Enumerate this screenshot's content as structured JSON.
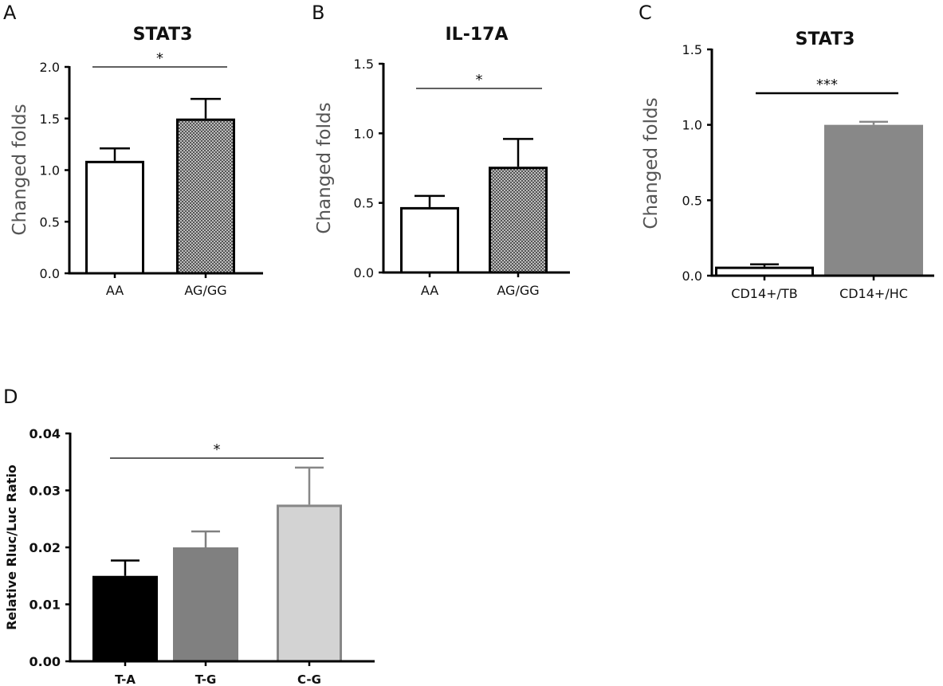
{
  "figure_title": "",
  "panel_letters": [
    "A",
    "B",
    "C",
    "D"
  ],
  "colors": {
    "white": "#ffffff",
    "checker_dark": "#555555",
    "checker_light": "#bdbdbd",
    "gray": "#888888",
    "black": "#000000",
    "mid_gray": "#808080",
    "light_gray": "#d3d3d3",
    "dark_gray_border": "#878787",
    "axis": "#000000"
  },
  "chart_data": [
    {
      "panel": "A",
      "type": "bar",
      "title": "STAT3",
      "xlabel": "",
      "ylabel": "Changed folds",
      "ylim": [
        0,
        2.0
      ],
      "yticks": [
        "0.0",
        "0.5",
        "1.0",
        "1.5",
        "2.0"
      ],
      "categories": [
        "AA",
        "AG/GG"
      ],
      "values": [
        1.09,
        1.5
      ],
      "errors": [
        0.12,
        0.19
      ],
      "fills": [
        "white",
        "checker"
      ],
      "significance": {
        "label": "*",
        "between": [
          0,
          1
        ]
      }
    },
    {
      "panel": "B",
      "type": "bar",
      "title": "IL-17A",
      "xlabel": "",
      "ylabel": "Changed folds",
      "ylim": [
        0,
        1.5
      ],
      "yticks": [
        "0.0",
        "0.5",
        "1.0",
        "1.5"
      ],
      "categories": [
        "AA",
        "AG/GG"
      ],
      "values": [
        0.47,
        0.76
      ],
      "errors": [
        0.08,
        0.2
      ],
      "fills": [
        "white",
        "checker"
      ],
      "significance": {
        "label": "*",
        "between": [
          0,
          1
        ]
      }
    },
    {
      "panel": "C",
      "type": "bar",
      "title": "STAT3",
      "xlabel": "",
      "ylabel": "Changed folds",
      "ylim": [
        0,
        1.5
      ],
      "yticks": [
        "0.0",
        "0.5",
        "1.0",
        "1.5"
      ],
      "categories": [
        "CD14+/TB",
        "CD14+/HC"
      ],
      "values": [
        0.06,
        1.0
      ],
      "errors": [
        0.015,
        0.02
      ],
      "fills": [
        "white",
        "gray"
      ],
      "significance": {
        "label": "***",
        "between": [
          0,
          1
        ]
      }
    },
    {
      "panel": "D",
      "type": "bar",
      "title": "",
      "xlabel": "",
      "ylabel": "Relative Rluc/Luc Ratio",
      "ylim": [
        0,
        0.04
      ],
      "yticks": [
        "0.00",
        "0.01",
        "0.02",
        "0.03",
        "0.04"
      ],
      "categories": [
        "T-A",
        "T-G",
        "C-G"
      ],
      "values": [
        0.015,
        0.02,
        0.0275
      ],
      "errors": [
        0.0027,
        0.0028,
        0.0065
      ],
      "fills": [
        "black",
        "mid_gray",
        "light_gray"
      ],
      "significance": {
        "label": "*",
        "between": [
          0,
          2
        ]
      }
    }
  ]
}
